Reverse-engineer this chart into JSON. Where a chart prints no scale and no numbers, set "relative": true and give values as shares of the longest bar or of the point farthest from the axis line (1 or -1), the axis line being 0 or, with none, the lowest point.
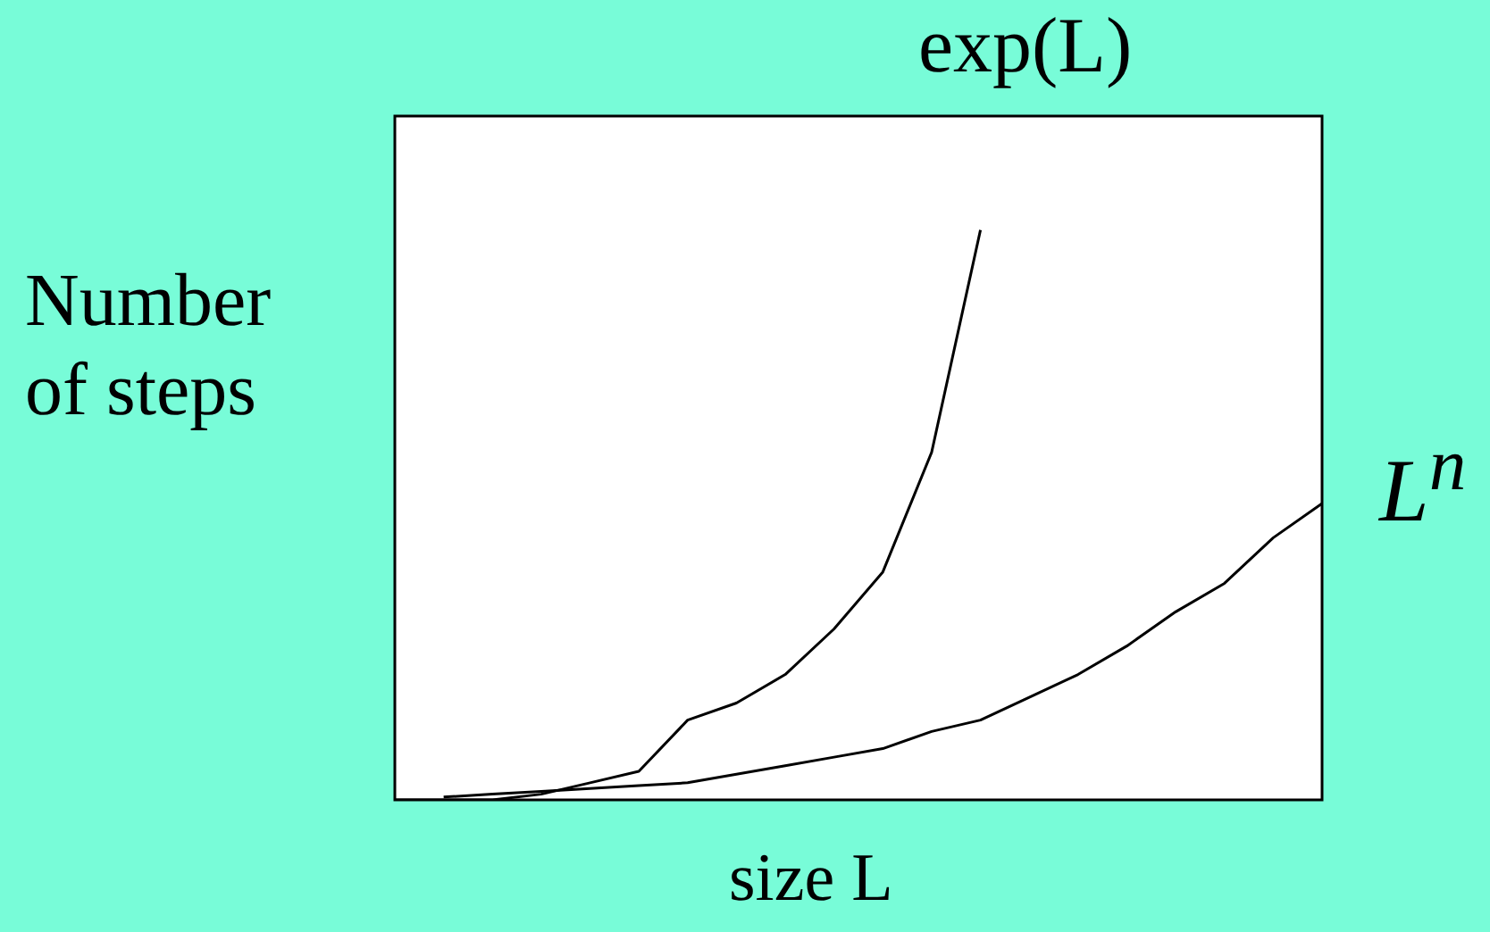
{
  "chart_data": {
    "type": "line",
    "relative": true,
    "xlabel": "size L",
    "ylabel": "Number\nof steps",
    "categories": [
      null,
      null,
      null,
      null,
      null,
      null,
      null,
      null,
      null,
      null,
      null,
      null,
      null,
      null,
      null,
      null,
      null,
      null,
      null,
      null
    ],
    "series": [
      {
        "name": "exp(L)",
        "color": "#000000",
        "values": [
          0,
          0,
          0,
          0.01,
          0.03,
          0.05,
          0.14,
          0.17,
          0.22,
          0.3,
          0.4,
          0.61,
          1,
          null,
          null,
          null,
          null,
          null,
          null,
          null
        ]
      },
      {
        "name": "L$^{n}$",
        "color": "#000000",
        "values": [
          null,
          0.005,
          0.01,
          0.015,
          0.02,
          0.025,
          0.03,
          0.045,
          0.06,
          0.075,
          0.09,
          0.12,
          0.14,
          0.18,
          0.22,
          0.27,
          0.33,
          0.38,
          0.46,
          0.52
        ]
      }
    ]
  }
}
